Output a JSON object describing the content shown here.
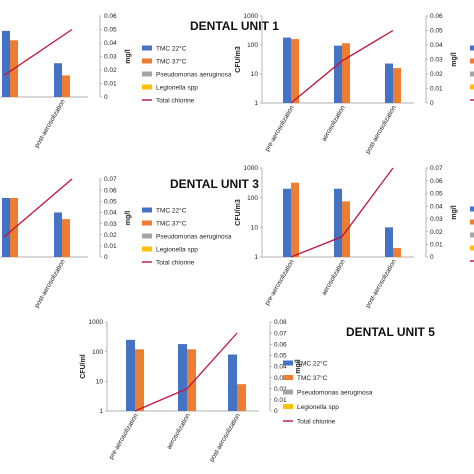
{
  "legend": {
    "items": [
      {
        "label": "TMC 22°C",
        "color": "#4472C4",
        "kind": "bar"
      },
      {
        "label": "TMC 37°C",
        "color": "#ED7D31",
        "kind": "bar"
      },
      {
        "label": "Pseudomonas aeruginosa",
        "color": "#A5A5A5",
        "kind": "bar"
      },
      {
        "label": "Legionella spp",
        "color": "#FFC000",
        "kind": "bar"
      },
      {
        "label": "Total chlorine",
        "color": "#C0143C",
        "kind": "line"
      }
    ]
  },
  "chart_data": [
    {
      "type": "bar",
      "title": "DENTAL UNIT 1",
      "categories": [
        "",
        "post-aerosolization"
      ],
      "ylabel": "",
      "y2label": "mg/l",
      "y2lim": [
        0,
        0.06
      ],
      "y2ticks": [
        "0",
        "0.01",
        "0.02",
        "0.03",
        "0.04",
        "0.05",
        "0.06"
      ],
      "series": [
        {
          "name": "TMC 22°C",
          "values": [
            0.049,
            0.025
          ]
        },
        {
          "name": "TMC 37°C",
          "values": [
            0.042,
            0.016
          ]
        },
        {
          "name": "Total chlorine",
          "values": [
            0.016,
            0.05
          ],
          "axis": "right"
        }
      ]
    },
    {
      "type": "bar",
      "title": "",
      "categories": [
        "pre-aerosolization",
        "aerosolization",
        "post-aerosolization"
      ],
      "ylabel": "CFU/m3",
      "yscale": "log",
      "ylim": [
        1,
        1000
      ],
      "yticks": [
        "1",
        "10",
        "100",
        "1000"
      ],
      "y2label": "mg/l",
      "y2lim": [
        0,
        0.06
      ],
      "y2ticks": [
        "0",
        "0.01",
        "0.02",
        "0.03",
        "0.04",
        "0.05",
        "0.06"
      ],
      "series": [
        {
          "name": "TMC 22°C",
          "values": [
            180,
            95,
            23
          ]
        },
        {
          "name": "TMC 37°C",
          "values": [
            160,
            115,
            16
          ]
        },
        {
          "name": "Total chlorine",
          "values": [
            0,
            0.029,
            0.05
          ],
          "axis": "right"
        }
      ]
    },
    {
      "type": "bar",
      "title": "DENTAL UNIT 3",
      "categories": [
        "",
        "post-aerosolization"
      ],
      "ylabel": "",
      "y2label": "mg/l",
      "y2lim": [
        0,
        0.07
      ],
      "y2ticks": [
        "0",
        "0.01",
        "0.02",
        "0.03",
        "0.04",
        "0.05",
        "0.06",
        "0.07"
      ],
      "series": [
        {
          "name": "TMC 22°C",
          "values": [
            0.053,
            0.04
          ]
        },
        {
          "name": "TMC 37°C",
          "values": [
            0.053,
            0.034
          ]
        },
        {
          "name": "Total chlorine",
          "values": [
            0.018,
            0.07
          ],
          "axis": "right"
        }
      ]
    },
    {
      "type": "bar",
      "title": "",
      "categories": [
        "pre-aerosolization",
        "aerosolization",
        "post-aerosolization"
      ],
      "ylabel": "CFU/m3",
      "yscale": "log",
      "ylim": [
        1,
        1000
      ],
      "yticks": [
        "1",
        "10",
        "100",
        "1000"
      ],
      "y2label": "mg/l",
      "y2lim": [
        0,
        0.07
      ],
      "y2ticks": [
        "0",
        "0.01",
        "0.02",
        "0.03",
        "0.04",
        "0.05",
        "0.06",
        "0.07"
      ],
      "series": [
        {
          "name": "TMC 22°C",
          "values": [
            200,
            200,
            10
          ]
        },
        {
          "name": "TMC 37°C",
          "values": [
            320,
            75,
            2
          ]
        },
        {
          "name": "Total chlorine",
          "values": [
            0,
            0.016,
            0.07
          ],
          "axis": "right"
        }
      ]
    },
    {
      "type": "bar",
      "title": "DENTAL UNIT 5",
      "categories": [
        "pre-aerosolization",
        "aerosolization",
        "post-aerosolization"
      ],
      "ylabel": "CFU/ml",
      "yscale": "log",
      "ylim": [
        1,
        1000
      ],
      "yticks": [
        "1",
        "10",
        "100",
        "1000"
      ],
      "y2label": "mg/l",
      "y2lim": [
        0,
        0.08
      ],
      "y2ticks": [
        "0",
        "0.01",
        "0.02",
        "0.03",
        "0.04",
        "0.05",
        "0.06",
        "0.07",
        "0.08"
      ],
      "series": [
        {
          "name": "TMC 22°C",
          "values": [
            250,
            180,
            80
          ]
        },
        {
          "name": "TMC 37°C",
          "values": [
            120,
            120,
            8
          ]
        },
        {
          "name": "Total chlorine",
          "values": [
            0,
            0.02,
            0.07
          ],
          "axis": "right"
        }
      ]
    }
  ]
}
